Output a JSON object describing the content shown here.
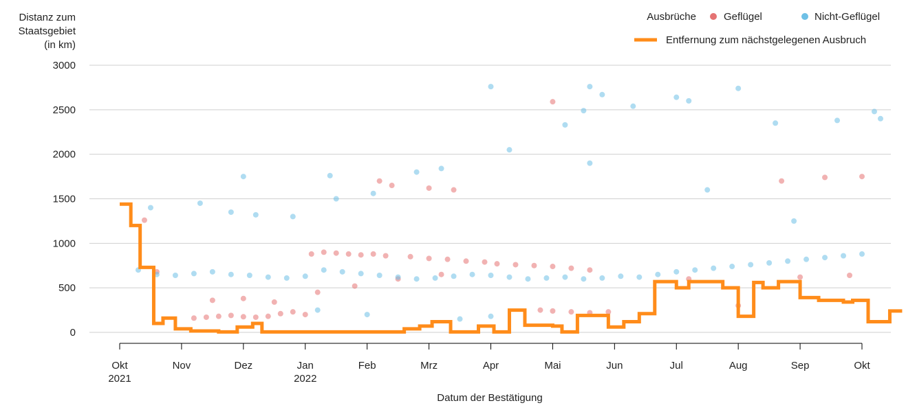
{
  "chart_data": {
    "type": "scatter",
    "ylabel_lines": [
      "Distanz zum",
      "Staatsgebiet",
      "(in km)"
    ],
    "xlabel": "Datum der Bestätigung",
    "ylim": [
      0,
      3000
    ],
    "yticks": [
      0,
      500,
      1000,
      1500,
      2000,
      2500,
      3000
    ],
    "xlim_months": [
      0,
      12
    ],
    "xticks": [
      {
        "pos": 0,
        "label": "Okt",
        "sublabel": "2021"
      },
      {
        "pos": 1,
        "label": "Nov",
        "sublabel": ""
      },
      {
        "pos": 2,
        "label": "Dez",
        "sublabel": ""
      },
      {
        "pos": 3,
        "label": "Jan",
        "sublabel": "2022"
      },
      {
        "pos": 4,
        "label": "Feb",
        "sublabel": ""
      },
      {
        "pos": 5,
        "label": "Mrz",
        "sublabel": ""
      },
      {
        "pos": 6,
        "label": "Apr",
        "sublabel": ""
      },
      {
        "pos": 7,
        "label": "Mai",
        "sublabel": ""
      },
      {
        "pos": 8,
        "label": "Jun",
        "sublabel": ""
      },
      {
        "pos": 9,
        "label": "Jul",
        "sublabel": ""
      },
      {
        "pos": 10,
        "label": "Aug",
        "sublabel": ""
      },
      {
        "pos": 11,
        "label": "Sep",
        "sublabel": ""
      },
      {
        "pos": 12,
        "label": "Okt",
        "sublabel": ""
      }
    ],
    "legend": {
      "title": "Ausbrüche",
      "poultry_label": "Geflügel",
      "nonpoultry_label": "Nicht-Geflügel",
      "line_label": "Entfernung zum nächstgelegenen Ausbruch"
    },
    "colors": {
      "poultry": "#e57373",
      "nonpoultry": "#6ec0e6",
      "line": "#ff8c1a"
    },
    "nearest_outbreak_step": [
      [
        0.0,
        1440
      ],
      [
        0.18,
        1200
      ],
      [
        0.33,
        730
      ],
      [
        0.55,
        100
      ],
      [
        0.7,
        160
      ],
      [
        0.9,
        40
      ],
      [
        1.15,
        15
      ],
      [
        1.6,
        5
      ],
      [
        1.9,
        60
      ],
      [
        2.15,
        100
      ],
      [
        2.3,
        5
      ],
      [
        3.5,
        5
      ],
      [
        4.5,
        5
      ],
      [
        4.6,
        40
      ],
      [
        4.85,
        70
      ],
      [
        5.05,
        120
      ],
      [
        5.35,
        5
      ],
      [
        5.8,
        70
      ],
      [
        6.05,
        5
      ],
      [
        6.3,
        250
      ],
      [
        6.55,
        80
      ],
      [
        7.0,
        70
      ],
      [
        7.15,
        5
      ],
      [
        7.4,
        190
      ],
      [
        7.9,
        60
      ],
      [
        8.15,
        120
      ],
      [
        8.4,
        210
      ],
      [
        8.65,
        570
      ],
      [
        9.0,
        500
      ],
      [
        9.2,
        570
      ],
      [
        9.75,
        500
      ],
      [
        10.0,
        180
      ],
      [
        10.25,
        560
      ],
      [
        10.4,
        500
      ],
      [
        10.65,
        570
      ],
      [
        11.0,
        390
      ],
      [
        11.3,
        360
      ],
      [
        11.7,
        340
      ],
      [
        11.85,
        360
      ],
      [
        12.1,
        120
      ],
      [
        12.45,
        240
      ],
      [
        12.65,
        240
      ]
    ],
    "poultry_series": [
      [
        1.2,
        160
      ],
      [
        1.4,
        170
      ],
      [
        1.6,
        180
      ],
      [
        1.8,
        190
      ],
      [
        2.0,
        175
      ],
      [
        2.2,
        170
      ],
      [
        2.4,
        180
      ],
      [
        2.6,
        210
      ],
      [
        2.8,
        230
      ],
      [
        3.0,
        200
      ],
      [
        1.5,
        360
      ],
      [
        2.0,
        380
      ],
      [
        2.5,
        340
      ],
      [
        3.1,
        880
      ],
      [
        3.3,
        900
      ],
      [
        3.5,
        890
      ],
      [
        3.7,
        880
      ],
      [
        3.9,
        870
      ],
      [
        4.1,
        880
      ],
      [
        4.3,
        860
      ],
      [
        4.7,
        850
      ],
      [
        5.0,
        830
      ],
      [
        5.3,
        820
      ],
      [
        5.6,
        800
      ],
      [
        5.9,
        790
      ],
      [
        6.1,
        770
      ],
      [
        6.4,
        760
      ],
      [
        6.7,
        750
      ],
      [
        7.0,
        740
      ],
      [
        7.3,
        720
      ],
      [
        7.6,
        700
      ],
      [
        6.8,
        250
      ],
      [
        7.0,
        240
      ],
      [
        7.3,
        230
      ],
      [
        7.6,
        220
      ],
      [
        7.9,
        230
      ],
      [
        3.2,
        450
      ],
      [
        3.8,
        520
      ],
      [
        4.5,
        600
      ],
      [
        5.2,
        650
      ],
      [
        4.2,
        1700
      ],
      [
        4.4,
        1650
      ],
      [
        5.0,
        1620
      ],
      [
        5.4,
        1600
      ],
      [
        7.0,
        2590
      ],
      [
        10.7,
        1700
      ],
      [
        11.4,
        1740
      ],
      [
        12.0,
        1750
      ],
      [
        10.0,
        300
      ],
      [
        9.2,
        600
      ],
      [
        11.0,
        620
      ],
      [
        11.8,
        640
      ],
      [
        0.6,
        680
      ],
      [
        0.4,
        1260
      ]
    ],
    "nonpoultry_series": [
      [
        0.3,
        700
      ],
      [
        0.6,
        650
      ],
      [
        0.9,
        640
      ],
      [
        1.2,
        660
      ],
      [
        1.5,
        680
      ],
      [
        1.8,
        650
      ],
      [
        2.1,
        640
      ],
      [
        2.4,
        620
      ],
      [
        2.7,
        610
      ],
      [
        3.0,
        630
      ],
      [
        3.3,
        700
      ],
      [
        3.6,
        680
      ],
      [
        3.9,
        660
      ],
      [
        4.2,
        640
      ],
      [
        4.5,
        620
      ],
      [
        4.8,
        600
      ],
      [
        5.1,
        610
      ],
      [
        5.4,
        630
      ],
      [
        5.7,
        650
      ],
      [
        6.0,
        640
      ],
      [
        6.3,
        620
      ],
      [
        6.6,
        600
      ],
      [
        6.9,
        610
      ],
      [
        7.2,
        620
      ],
      [
        7.5,
        600
      ],
      [
        7.8,
        610
      ],
      [
        8.1,
        630
      ],
      [
        8.4,
        620
      ],
      [
        8.7,
        650
      ],
      [
        9.0,
        680
      ],
      [
        9.3,
        700
      ],
      [
        9.6,
        720
      ],
      [
        9.9,
        740
      ],
      [
        10.2,
        760
      ],
      [
        10.5,
        780
      ],
      [
        10.8,
        800
      ],
      [
        11.1,
        820
      ],
      [
        11.4,
        840
      ],
      [
        11.7,
        860
      ],
      [
        12.0,
        880
      ],
      [
        0.5,
        1400
      ],
      [
        1.3,
        1450
      ],
      [
        1.8,
        1350
      ],
      [
        2.2,
        1320
      ],
      [
        2.8,
        1300
      ],
      [
        3.5,
        1500
      ],
      [
        4.1,
        1560
      ],
      [
        4.8,
        1800
      ],
      [
        5.2,
        1840
      ],
      [
        6.0,
        2760
      ],
      [
        6.3,
        2050
      ],
      [
        7.2,
        2330
      ],
      [
        7.5,
        2490
      ],
      [
        7.6,
        2760
      ],
      [
        7.8,
        2670
      ],
      [
        8.3,
        2540
      ],
      [
        9.0,
        2640
      ],
      [
        9.2,
        2600
      ],
      [
        10.0,
        2740
      ],
      [
        10.6,
        2350
      ],
      [
        11.6,
        2380
      ],
      [
        12.2,
        2480
      ],
      [
        12.3,
        2400
      ],
      [
        7.6,
        1900
      ],
      [
        9.5,
        1600
      ],
      [
        10.9,
        1250
      ],
      [
        3.2,
        250
      ],
      [
        4.0,
        200
      ],
      [
        5.5,
        150
      ],
      [
        6.0,
        180
      ],
      [
        2.0,
        1750
      ],
      [
        3.4,
        1760
      ]
    ]
  }
}
